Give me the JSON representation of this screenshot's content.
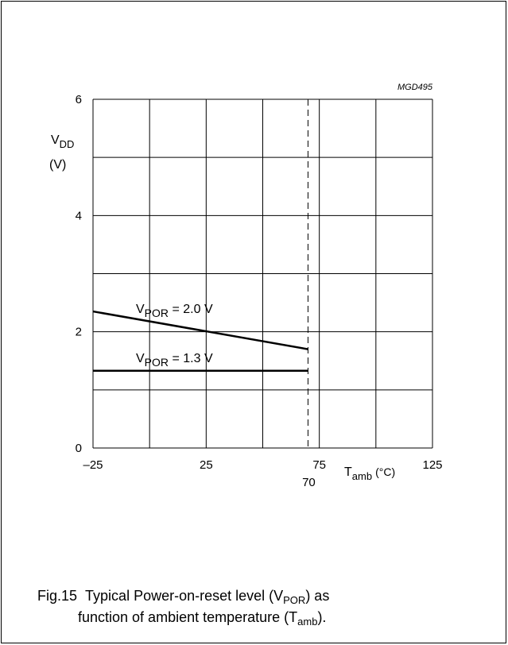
{
  "figure_id": "MGD495",
  "caption": {
    "number": "Fig.15",
    "line1_before": "Typical Power-on-reset level (V",
    "line1_sub": "POR",
    "line1_after": ") as",
    "line2_before": "function of ambient temperature (T",
    "line2_sub": "amb",
    "line2_after": ")."
  },
  "chart_data": {
    "type": "line",
    "ylabel": {
      "symbol": "V",
      "sub": "DD",
      "unit": "(V)"
    },
    "xlabel": {
      "symbol": "T",
      "sub": "amb",
      "unit": "(°C)"
    },
    "xlim": [
      -25,
      125
    ],
    "ylim": [
      0,
      6
    ],
    "x_ticks": [
      -25,
      25,
      75,
      125
    ],
    "x_tick_labels": [
      "–25",
      "25",
      "75",
      "125"
    ],
    "y_ticks": [
      0,
      2,
      4,
      6
    ],
    "y_tick_labels": [
      "0",
      "2",
      "4",
      "6"
    ],
    "x_gridlines": [
      -25,
      0,
      25,
      50,
      75,
      100,
      125
    ],
    "y_gridlines": [
      0,
      1,
      2,
      3,
      4,
      5,
      6
    ],
    "grid": true,
    "marker_line": {
      "x": 70,
      "label": "70",
      "style": "dashed"
    },
    "series": [
      {
        "name_symbol": "V",
        "name_sub": "POR",
        "name_value": " = 2.0 V",
        "x": [
          -25,
          70
        ],
        "y": [
          2.35,
          1.7
        ]
      },
      {
        "name_symbol": "V",
        "name_sub": "POR",
        "name_value": " = 1.3 V",
        "x": [
          -25,
          70
        ],
        "y": [
          1.33,
          1.33
        ]
      }
    ]
  }
}
